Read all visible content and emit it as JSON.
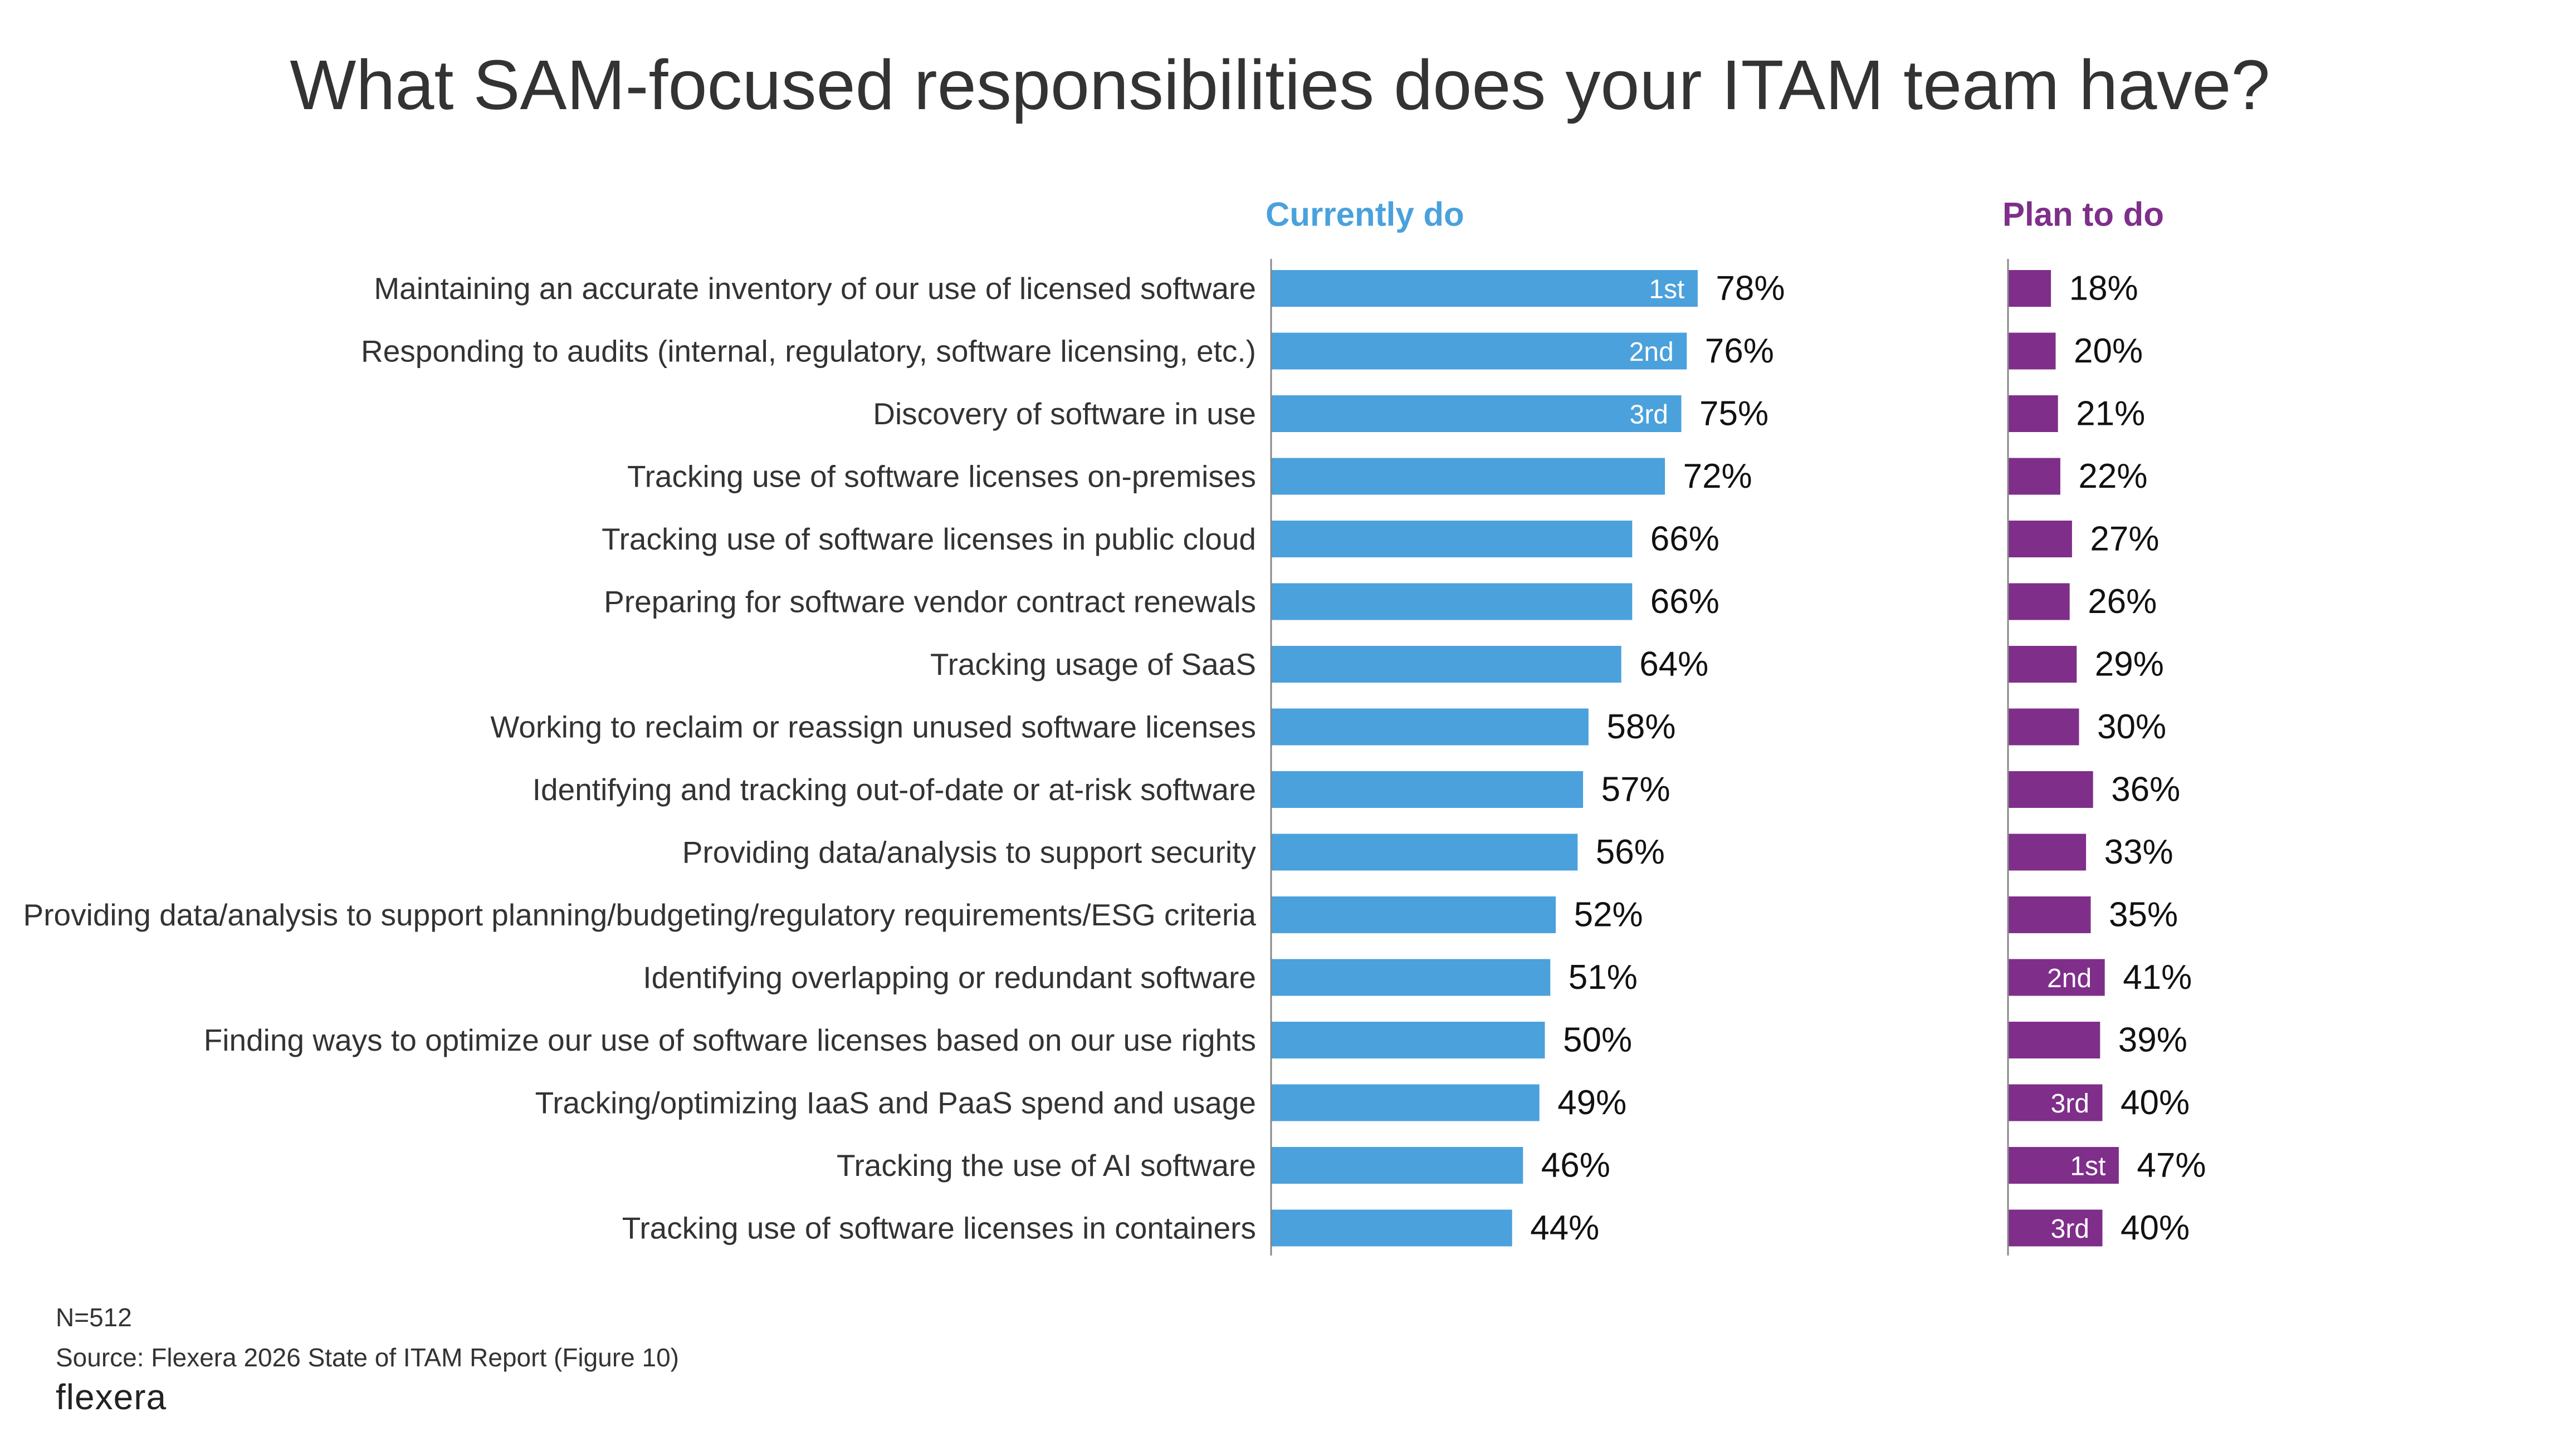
{
  "chart_data": {
    "type": "bar",
    "orientation": "horizontal",
    "title": "What SAM-focused responsibilities does your ITAM team have?",
    "categories": [
      "Maintaining an accurate inventory of our use of licensed software",
      "Responding to audits (internal, regulatory, software licensing, etc.)",
      "Discovery of software in use",
      "Tracking use of software licenses on-premises",
      "Tracking use of software licenses in public cloud",
      "Preparing for software vendor contract renewals",
      "Tracking usage of SaaS",
      "Working to reclaim or reassign unused software licenses",
      "Identifying and tracking out-of-date or at-risk software",
      "Providing data/analysis to support security",
      "Providing data/analysis to support planning/budgeting/regulatory requirements/ESG criteria",
      "Identifying overlapping or redundant software",
      "Finding ways to optimize our use of software licenses based on our use rights",
      "Tracking/optimizing IaaS and PaaS spend and usage",
      "Tracking the use of AI software",
      "Tracking use of software licenses in containers"
    ],
    "series": [
      {
        "name": "Currently do",
        "color": "#4aa1dc",
        "values": [
          78,
          76,
          75,
          72,
          66,
          66,
          64,
          58,
          57,
          56,
          52,
          51,
          50,
          49,
          46,
          44
        ],
        "labels": [
          "78%",
          "76%",
          "75%",
          "72%",
          "66%",
          "66%",
          "64%",
          "58%",
          "57%",
          "56%",
          "52%",
          "51%",
          "50%",
          "49%",
          "46%",
          "44%"
        ],
        "ranks": [
          "1st",
          "2nd",
          "3rd",
          "",
          "",
          "",
          "",
          "",
          "",
          "",
          "",
          "",
          "",
          "",
          "",
          ""
        ]
      },
      {
        "name": "Plan to do",
        "color": "#7f2e8a",
        "values": [
          18,
          20,
          21,
          22,
          27,
          26,
          29,
          30,
          36,
          33,
          35,
          41,
          39,
          40,
          47,
          40
        ],
        "labels": [
          "18%",
          "20%",
          "21%",
          "22%",
          "27%",
          "26%",
          "29%",
          "30%",
          "36%",
          "33%",
          "35%",
          "41%",
          "39%",
          "40%",
          "47%",
          "40%"
        ],
        "ranks": [
          "",
          "",
          "",
          "",
          "",
          "",
          "",
          "",
          "",
          "",
          "",
          "2nd",
          "",
          "3rd",
          "1st",
          "3rd"
        ]
      }
    ],
    "xlim": [
      0,
      100
    ],
    "grid": false,
    "legend": "none"
  },
  "footer": {
    "n": "N=512",
    "source": "Source: Flexera 2026 State of ITAM Report (Figure 10)"
  },
  "brand": {
    "logo_text": "flexera",
    "text_color": "#333333"
  }
}
